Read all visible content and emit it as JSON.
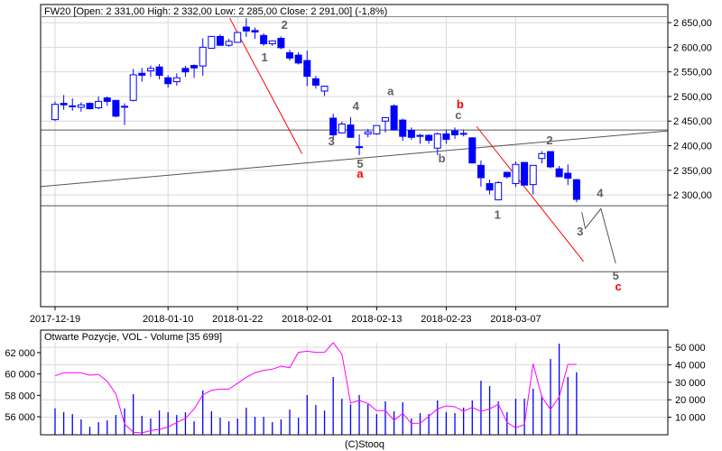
{
  "header": {
    "title": "FW20 [Open: 2 331,00  High: 2 332,00  Low: 2 285,00  Close: 2 291,00] (-1,8%)"
  },
  "lower_header": {
    "title": "Otwarte Pozycje, VOL - Volume [35 699]"
  },
  "footer": {
    "copyright": "(C)Stooq"
  },
  "colors": {
    "candle": "#0000ff",
    "oi_line": "#ff00ff",
    "trend": "#ff0000",
    "wave_gray": "#606060",
    "wave_red": "#ff0000",
    "grid": "#d8d8d8"
  },
  "chart_data": [
    {
      "type": "candlestick",
      "title": "FW20",
      "x_ticks": [
        {
          "index": 0,
          "label": "2017-12-19"
        },
        {
          "index": 13,
          "label": "2018-01-10"
        },
        {
          "index": 21,
          "label": "2018-01-22"
        },
        {
          "index": 29,
          "label": "2018-02-01"
        },
        {
          "index": 37,
          "label": "2018-02-13"
        },
        {
          "index": 45,
          "label": "2018-02-23"
        },
        {
          "index": 53,
          "label": "2018-03-07"
        }
      ],
      "y_ticks": [
        {
          "value": 2650,
          "label": "2 650,00"
        },
        {
          "value": 2600,
          "label": "2 600,00"
        },
        {
          "value": 2550,
          "label": "2 550,00"
        },
        {
          "value": 2500,
          "label": "2 500,00"
        },
        {
          "value": 2450,
          "label": "2 450,00"
        },
        {
          "value": 2400,
          "label": "2 400,00"
        },
        {
          "value": 2350,
          "label": "2 350,00"
        },
        {
          "value": 2300,
          "label": "2 300,00"
        }
      ],
      "ylim": [
        2073,
        2663
      ],
      "xlim": [
        -1.66,
        70.5
      ],
      "ohlc": [
        [
          2453,
          2490,
          2450,
          2484
        ],
        [
          2486,
          2503,
          2473,
          2483
        ],
        [
          2481,
          2496,
          2471,
          2480
        ],
        [
          2478,
          2488,
          2469,
          2483
        ],
        [
          2486,
          2488,
          2474,
          2475
        ],
        [
          2477,
          2500,
          2474,
          2490
        ],
        [
          2497,
          2500,
          2481,
          2490
        ],
        [
          2492,
          2493,
          2458,
          2460
        ],
        [
          2479,
          2486,
          2442,
          2480
        ],
        [
          2492,
          2556,
          2490,
          2544
        ],
        [
          2547,
          2558,
          2530,
          2543
        ],
        [
          2552,
          2563,
          2540,
          2557
        ],
        [
          2560,
          2566,
          2535,
          2543
        ],
        [
          2538,
          2543,
          2518,
          2526
        ],
        [
          2530,
          2547,
          2522,
          2538
        ],
        [
          2557,
          2562,
          2540,
          2550
        ],
        [
          2563,
          2565,
          2538,
          2558
        ],
        [
          2562,
          2618,
          2542,
          2600
        ],
        [
          2598,
          2623,
          2597,
          2622
        ],
        [
          2622,
          2626,
          2603,
          2604
        ],
        [
          2604,
          2617,
          2601,
          2612
        ],
        [
          2610,
          2631,
          2609,
          2630
        ],
        [
          2641,
          2659,
          2621,
          2633
        ],
        [
          2634,
          2640,
          2617,
          2631
        ],
        [
          2624,
          2628,
          2603,
          2607
        ],
        [
          2607,
          2614,
          2603,
          2613
        ],
        [
          2618,
          2622,
          2596,
          2599
        ],
        [
          2589,
          2595,
          2573,
          2578
        ],
        [
          2584,
          2590,
          2565,
          2568
        ],
        [
          2573,
          2593,
          2521,
          2541
        ],
        [
          2536,
          2542,
          2516,
          2523
        ],
        [
          2511,
          2522,
          2501,
          2521
        ],
        [
          2456,
          2465,
          2415,
          2422
        ],
        [
          2426,
          2449,
          2425,
          2444
        ],
        [
          2442,
          2458,
          2416,
          2417
        ],
        [
          2398,
          2423,
          2381,
          2396
        ],
        [
          2424,
          2434,
          2417,
          2428
        ],
        [
          2424,
          2441,
          2422,
          2441
        ],
        [
          2450,
          2458,
          2427,
          2457
        ],
        [
          2481,
          2484,
          2431,
          2432
        ],
        [
          2452,
          2455,
          2410,
          2419
        ],
        [
          2431,
          2437,
          2412,
          2417
        ],
        [
          2421,
          2424,
          2404,
          2419
        ],
        [
          2421,
          2423,
          2404,
          2411
        ],
        [
          2395,
          2427,
          2381,
          2424
        ],
        [
          2424,
          2433,
          2404,
          2413
        ],
        [
          2430,
          2437,
          2414,
          2422
        ],
        [
          2425,
          2433,
          2419,
          2424
        ],
        [
          2416,
          2417,
          2364,
          2365
        ],
        [
          2360,
          2370,
          2317,
          2335
        ],
        [
          2323,
          2331,
          2301,
          2310
        ],
        [
          2290,
          2328,
          2289,
          2325
        ],
        [
          2346,
          2347,
          2333,
          2337
        ],
        [
          2323,
          2368,
          2316,
          2362
        ],
        [
          2366,
          2367,
          2320,
          2320
        ],
        [
          2321,
          2360,
          2301,
          2360
        ],
        [
          2374,
          2389,
          2364,
          2384
        ],
        [
          2388,
          2389,
          2354,
          2357
        ],
        [
          2353,
          2359,
          2336,
          2337
        ],
        [
          2344,
          2362,
          2320,
          2334
        ],
        [
          2331,
          2332,
          2285,
          2291
        ]
      ],
      "annotations": {
        "red_lines": [
          [
            [
              20.1,
              2659
            ],
            [
              28.4,
              2384
            ]
          ],
          [
            [
              48.5,
              2439
            ],
            [
              60.8,
              2165
            ]
          ]
        ],
        "gray_lines": [
          [
            [
              -1.66,
              2317
            ],
            [
              70.5,
              2430
            ]
          ]
        ],
        "horizontal_lines": [
          2432,
          2278,
          2144
        ],
        "zigzag": [
          [
            60.6,
            2265
          ],
          [
            61.0,
            2232
          ],
          [
            62.8,
            2272
          ],
          [
            64.5,
            2161
          ]
        ],
        "labels": [
          {
            "text": "1",
            "i": 24.1,
            "p": 2571,
            "color": "gray"
          },
          {
            "text": "2",
            "i": 26.4,
            "p": 2637,
            "color": "gray"
          },
          {
            "text": "3",
            "i": 31.8,
            "p": 2401,
            "color": "gray"
          },
          {
            "text": "4",
            "i": 34.6,
            "p": 2472,
            "color": "gray"
          },
          {
            "text": "5",
            "i": 35.1,
            "p": 2355,
            "color": "gray"
          },
          {
            "text": "a",
            "i": 35.1,
            "p": 2335,
            "color": "red"
          },
          {
            "text": "a",
            "i": 38.6,
            "p": 2503,
            "color": "gray"
          },
          {
            "text": "b",
            "i": 46.6,
            "p": 2476,
            "color": "red"
          },
          {
            "text": "c",
            "i": 46.4,
            "p": 2454,
            "color": "gray"
          },
          {
            "text": "b",
            "i": 44.5,
            "p": 2366,
            "color": "gray"
          },
          {
            "text": "1",
            "i": 50.9,
            "p": 2252,
            "color": "gray"
          },
          {
            "text": "2",
            "i": 56.9,
            "p": 2403,
            "color": "gray"
          },
          {
            "text": "3",
            "i": 60.4,
            "p": 2218,
            "color": "gray"
          },
          {
            "text": "4",
            "i": 62.7,
            "p": 2296,
            "color": "gray"
          },
          {
            "text": "5",
            "i": 64.5,
            "p": 2128,
            "color": "gray"
          },
          {
            "text": "c",
            "i": 64.8,
            "p": 2106,
            "color": "red"
          }
        ]
      }
    },
    {
      "type": "bar+line",
      "title": "Otwarte Pozycje, VOL - Volume",
      "volume_ticks": [
        {
          "value": 50000,
          "label": "50 000"
        },
        {
          "value": 40000,
          "label": "40 000"
        },
        {
          "value": 30000,
          "label": "30 000"
        },
        {
          "value": 20000,
          "label": "20 000"
        },
        {
          "value": 10000,
          "label": "10 000"
        }
      ],
      "oi_ticks": [
        {
          "value": 62000,
          "label": "62 000"
        },
        {
          "value": 60000,
          "label": "60 000"
        },
        {
          "value": 58000,
          "label": "58 000"
        },
        {
          "value": 56000,
          "label": "56 000"
        }
      ],
      "volume_ylim": [
        0,
        59800
      ],
      "oi_ylim": [
        54310,
        64110
      ],
      "volume": [
        15100,
        12900,
        11800,
        8800,
        4600,
        7200,
        8200,
        11300,
        15100,
        23200,
        10800,
        9300,
        13900,
        12900,
        11300,
        12900,
        7700,
        25300,
        13400,
        9800,
        7700,
        9300,
        15500,
        10300,
        10300,
        7200,
        8800,
        14400,
        9800,
        22700,
        17000,
        13900,
        33000,
        20600,
        17400,
        22700,
        17400,
        11900,
        19100,
        13400,
        18600,
        9300,
        12400,
        11900,
        19600,
        12900,
        12400,
        15500,
        19600,
        30900,
        27800,
        19100,
        12900,
        20600,
        20600,
        26300,
        22200,
        43300,
        52100,
        33000,
        35699
      ],
      "open_interest": [
        59830,
        60120,
        60120,
        60120,
        59890,
        59970,
        59320,
        58140,
        55320,
        54540,
        54480,
        54700,
        54820,
        55040,
        55470,
        55830,
        56730,
        58050,
        58480,
        58590,
        58590,
        59130,
        59690,
        60120,
        60340,
        60450,
        60730,
        60590,
        62030,
        62140,
        62030,
        62030,
        62930,
        61860,
        57300,
        57520,
        57240,
        56570,
        56570,
        55660,
        56310,
        55380,
        55400,
        56030,
        56730,
        57010,
        56930,
        56510,
        56870,
        56510,
        56730,
        57180,
        55470,
        54960,
        55260,
        60960,
        57860,
        56680,
        57860,
        60900,
        60900
      ]
    }
  ]
}
